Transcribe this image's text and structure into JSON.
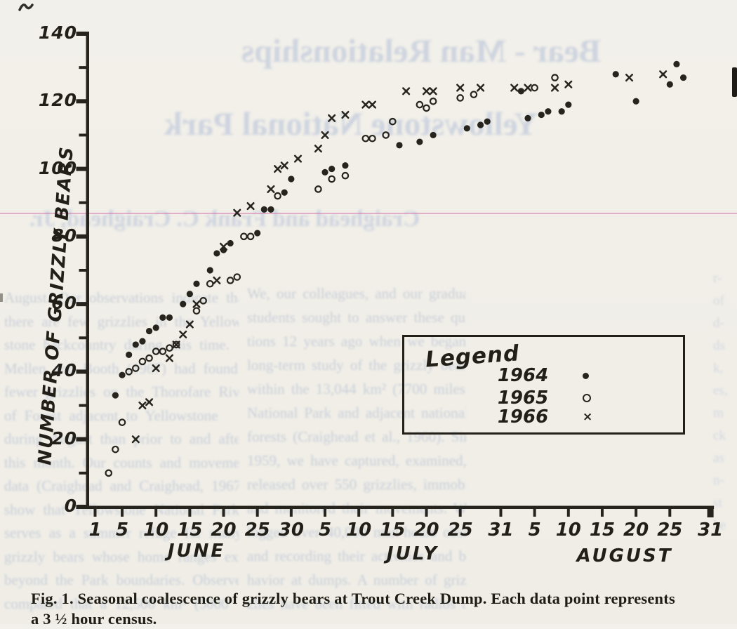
{
  "figure_caption": {
    "line1": "Fig. 1.  Seasonal coalescence of grizzly bears at Trout Creek Dump. Each data point represents",
    "line2": "a 3 ½ hour census."
  },
  "legend": {
    "title": "Legend"
  },
  "chart_data": {
    "type": "scatter",
    "title": "",
    "xlabel": "",
    "ylabel": "NUMBER OF GRIZZLY BEARS",
    "ylim": [
      0,
      140
    ],
    "grid": false,
    "legend_position": "lower-right box",
    "ink_color": "#26241d",
    "y_major_ticks": [
      0,
      20,
      40,
      60,
      80,
      100,
      120,
      140
    ],
    "y_minor_ticks": [
      10,
      30,
      50,
      70,
      90,
      110,
      130
    ],
    "x_note": "day index 1 = June 1, 31 = July 1, 62 = August 1, 92 = August 31",
    "months": [
      {
        "name": "JUNE",
        "ticks": [
          {
            "day": 1,
            "label": "1"
          },
          {
            "day": 5,
            "label": "5"
          },
          {
            "day": 10,
            "label": "10"
          },
          {
            "day": 15,
            "label": "15"
          },
          {
            "day": 20,
            "label": "20"
          },
          {
            "day": 25,
            "label": "25"
          },
          {
            "day": 30,
            "label": "30"
          }
        ]
      },
      {
        "name": "JULY",
        "ticks": [
          {
            "day": 35,
            "label": "5"
          },
          {
            "day": 40,
            "label": "10"
          },
          {
            "day": 45,
            "label": "15"
          },
          {
            "day": 50,
            "label": "20"
          },
          {
            "day": 55,
            "label": "25"
          },
          {
            "day": 61,
            "label": "31"
          }
        ]
      },
      {
        "name": "AUGUST",
        "ticks": [
          {
            "day": 66,
            "label": "5"
          },
          {
            "day": 71,
            "label": "10"
          },
          {
            "day": 76,
            "label": "15"
          },
          {
            "day": 81,
            "label": "20"
          },
          {
            "day": 86,
            "label": "25"
          },
          {
            "day": 92,
            "label": "31"
          }
        ]
      }
    ],
    "series": [
      {
        "name": "1964",
        "marker": "filled-dot",
        "points": [
          [
            4,
            33
          ],
          [
            5,
            39
          ],
          [
            6,
            45
          ],
          [
            7,
            48
          ],
          [
            8,
            49
          ],
          [
            9,
            52
          ],
          [
            10,
            53
          ],
          [
            11,
            56
          ],
          [
            12,
            56
          ],
          [
            14,
            60
          ],
          [
            15,
            63
          ],
          [
            16,
            66
          ],
          [
            18,
            70
          ],
          [
            19,
            75
          ],
          [
            20,
            76
          ],
          [
            21,
            78
          ],
          [
            25,
            81
          ],
          [
            26,
            88
          ],
          [
            27,
            88
          ],
          [
            29,
            93
          ],
          [
            30,
            97
          ],
          [
            35,
            99
          ],
          [
            36,
            100
          ],
          [
            38,
            101
          ],
          [
            46,
            107
          ],
          [
            49,
            108
          ],
          [
            51,
            110
          ],
          [
            56,
            112
          ],
          [
            58,
            113
          ],
          [
            59,
            114
          ],
          [
            64,
            123
          ],
          [
            65,
            115
          ],
          [
            67,
            116
          ],
          [
            68,
            117
          ],
          [
            70,
            117
          ],
          [
            71,
            119
          ],
          [
            78,
            128
          ],
          [
            81,
            120
          ],
          [
            86,
            125
          ],
          [
            87,
            131
          ],
          [
            88,
            127
          ]
        ]
      },
      {
        "name": "1965",
        "marker": "open-circle",
        "points": [
          [
            3,
            10
          ],
          [
            4,
            17
          ],
          [
            5,
            25
          ],
          [
            6,
            40
          ],
          [
            7,
            41
          ],
          [
            8,
            43
          ],
          [
            9,
            44
          ],
          [
            10,
            46
          ],
          [
            11,
            46
          ],
          [
            12,
            47
          ],
          [
            13,
            48
          ],
          [
            16,
            58
          ],
          [
            17,
            61
          ],
          [
            18,
            66
          ],
          [
            21,
            67
          ],
          [
            22,
            68
          ],
          [
            23,
            80
          ],
          [
            24,
            80
          ],
          [
            28,
            92
          ],
          [
            34,
            94
          ],
          [
            36,
            97
          ],
          [
            38,
            98
          ],
          [
            41,
            109
          ],
          [
            42,
            109
          ],
          [
            44,
            110
          ],
          [
            45,
            114
          ],
          [
            49,
            119
          ],
          [
            50,
            118
          ],
          [
            51,
            120
          ],
          [
            55,
            121
          ],
          [
            57,
            122
          ],
          [
            66,
            124
          ],
          [
            69,
            127
          ]
        ]
      },
      {
        "name": "1966",
        "marker": "x-cross",
        "points": [
          [
            7,
            20
          ],
          [
            8,
            30
          ],
          [
            9,
            31
          ],
          [
            10,
            41
          ],
          [
            12,
            44
          ],
          [
            13,
            48
          ],
          [
            14,
            51
          ],
          [
            15,
            54
          ],
          [
            16,
            60
          ],
          [
            19,
            67
          ],
          [
            20,
            77
          ],
          [
            22,
            87
          ],
          [
            24,
            89
          ],
          [
            27,
            94
          ],
          [
            28,
            100
          ],
          [
            29,
            101
          ],
          [
            31,
            103
          ],
          [
            34,
            106
          ],
          [
            35,
            110
          ],
          [
            36,
            115
          ],
          [
            38,
            116
          ],
          [
            41,
            119
          ],
          [
            42,
            119
          ],
          [
            47,
            123
          ],
          [
            50,
            123
          ],
          [
            51,
            123
          ],
          [
            55,
            124
          ],
          [
            58,
            124
          ],
          [
            63,
            124
          ],
          [
            65,
            124
          ],
          [
            69,
            124
          ],
          [
            71,
            125
          ],
          [
            80,
            127
          ],
          [
            85,
            128
          ]
        ]
      }
    ]
  },
  "bleedthrough": {
    "headers": [
      "Bear - Man Relationships",
      "Yellowstone National Park",
      "Craighead and Frank C. Craighead, Jr."
    ],
    "left_column": [
      "August. Our observations indicate that",
      "there are few grizzlies in the Yellow-",
      "stone backcountry during this time.",
      "Mellen and Booth (1967) had found",
      "fewer grizzlies on the Thorofare Riv-",
      "of Forest adjacent to Yellowstone",
      "during August than prior to and after",
      "this month. Our counts and movement",
      "data (Craighead and Craighead, 1967)",
      "show that Yellowstone National Park",
      "serves as a summer refuge for many",
      "grizzly bears whose home ranges extend",
      "beyond the Park boundaries. Observe",
      "compared that a 12,500 km² (5000"
    ],
    "middle_column": [
      "We, our colleagues, and our graduate",
      "students sought to answer these ques-",
      "tions 12 years ago when we began a",
      "long-term study of the grizzly bear",
      "within the 13,044 km² (7700 miles²)",
      "National Park and adjacent national",
      "forests (Craighead et al., 1960). Since",
      "1959, we have captured, examined, and",
      "released over 550 grizzlies, immobilized",
      "and monitored their movements. We",
      "logged over 40,000 man-hours observing",
      "and recording their activities and be-",
      "havior at dumps. A number of griz-",
      "zlies have been fitted with radios and"
    ],
    "right_fragments": [
      "r-",
      "of",
      "d-",
      "ds",
      "k,",
      "es,",
      "m",
      "ck",
      "as",
      "n-",
      "st",
      "he"
    ]
  }
}
